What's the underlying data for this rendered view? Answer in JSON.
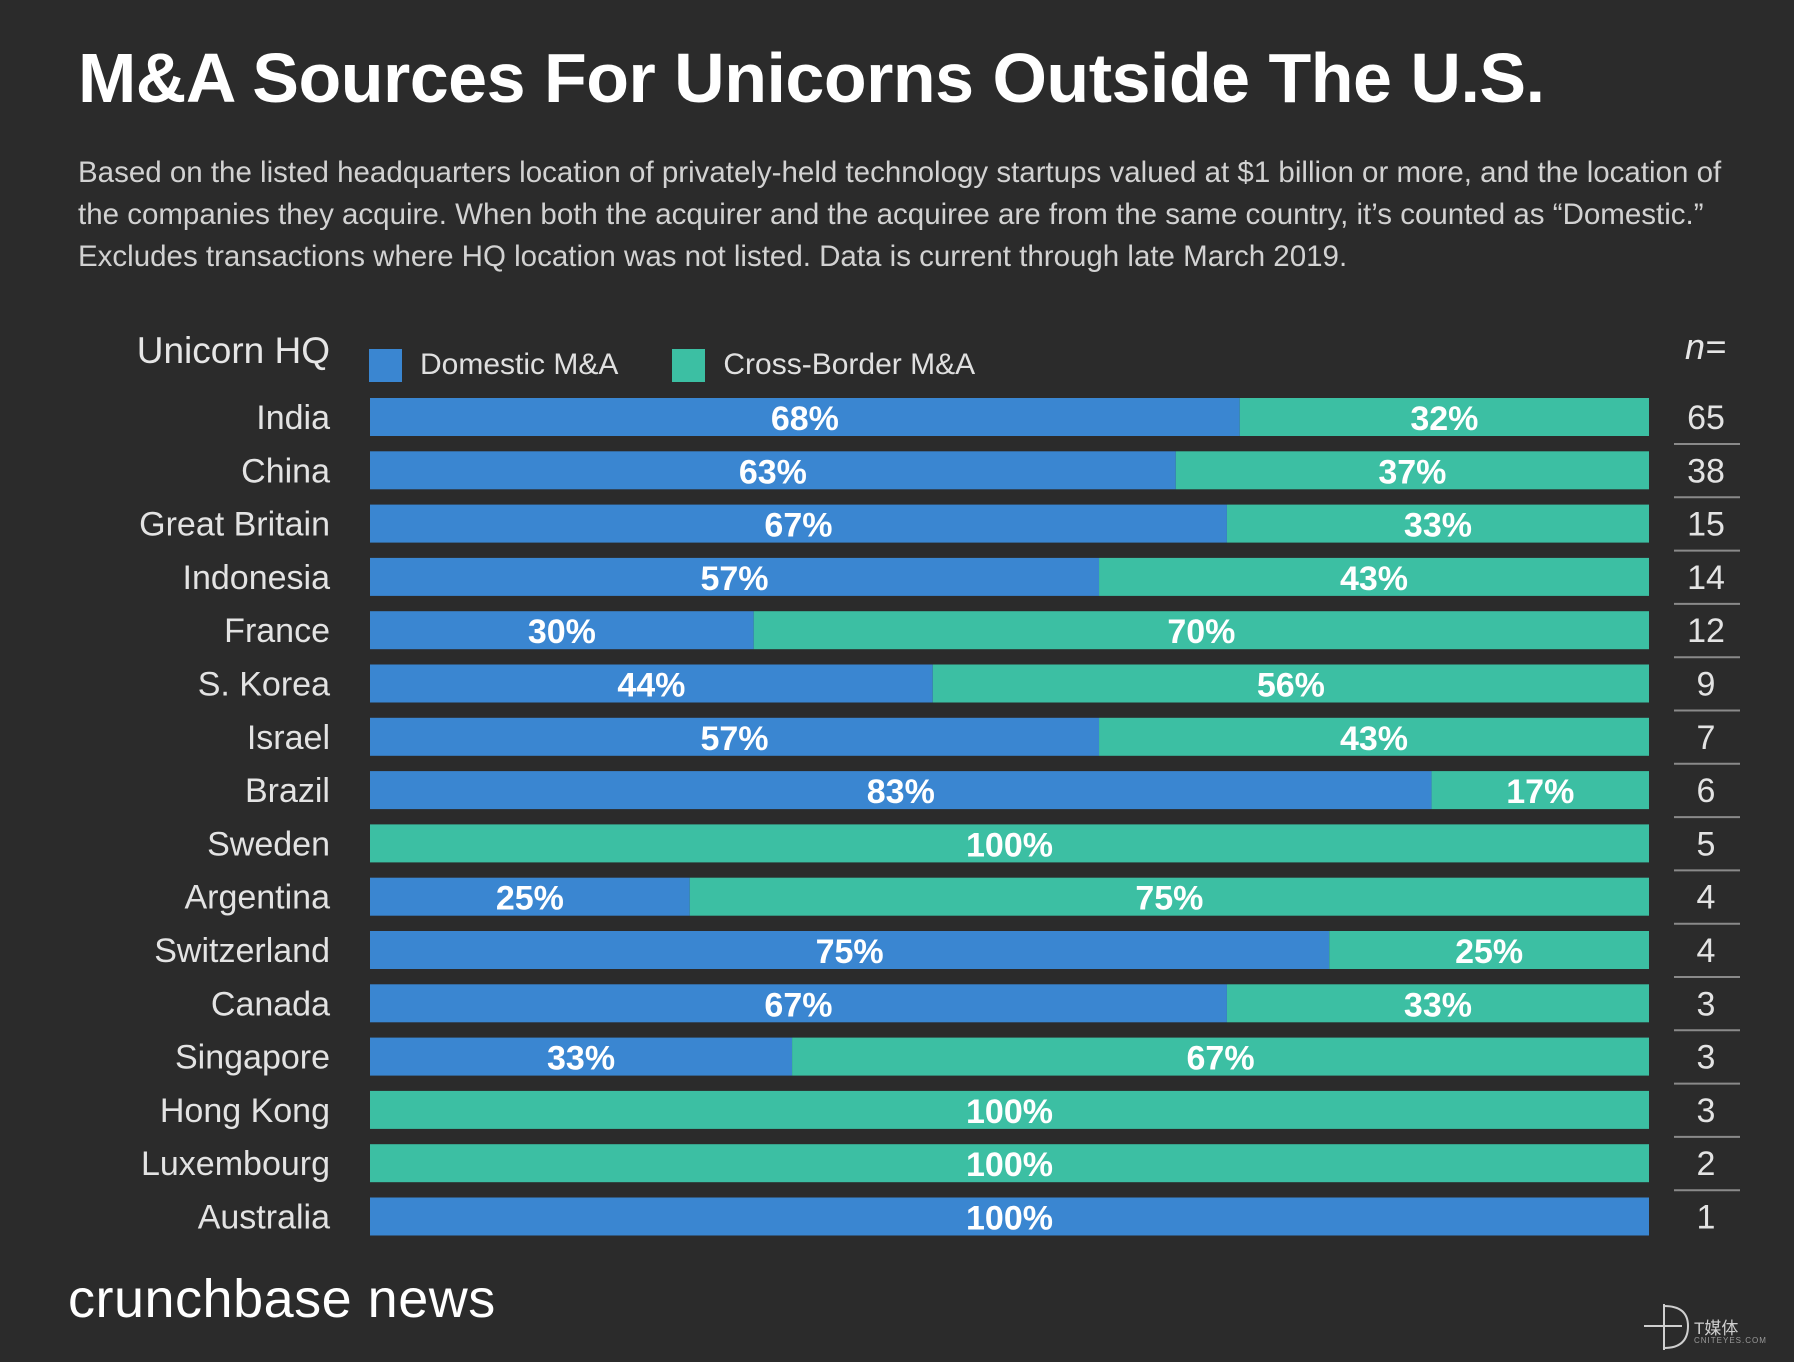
{
  "title": "M&A Sources For Unicorns Outside The U.S.",
  "subtitle": "Based on the listed headquarters location of privately-held technology startups valued at $1 billion or more, and the location of the companies they acquire. When both the acquirer and the acquiree are from the same country, it’s counted as “Domestic.” Excludes transactions where HQ location was not listed. Data is current through late March 2019.",
  "legend": {
    "row_header": "Unicorn HQ",
    "domestic": "Domestic M&A",
    "cross_border": "Cross-Border M&A",
    "n_header": "n="
  },
  "colors": {
    "background": "#2b2b2b",
    "domestic": "#3a86d1",
    "cross_border": "#3cbfa3",
    "divider": "#8a8a8a"
  },
  "footer": {
    "brand": "crunchbase news",
    "watermark": "T媒体",
    "watermark_sub": "CNITEYES.COM"
  },
  "chart_data": {
    "type": "bar",
    "orientation": "horizontal",
    "stacked": true,
    "normalized_percent": true,
    "categories": [
      "India",
      "China",
      "Great Britain",
      "Indonesia",
      "France",
      "S. Korea",
      "Israel",
      "Brazil",
      "Sweden",
      "Argentina",
      "Switzerland",
      "Canada",
      "Singapore",
      "Hong Kong",
      "Luxembourg",
      "Australia"
    ],
    "series": [
      {
        "name": "Domestic M&A",
        "values": [
          68,
          63,
          67,
          57,
          30,
          44,
          57,
          83,
          0,
          25,
          75,
          67,
          33,
          0,
          0,
          100
        ]
      },
      {
        "name": "Cross-Border M&A",
        "values": [
          32,
          37,
          33,
          43,
          70,
          56,
          43,
          17,
          100,
          75,
          25,
          33,
          67,
          100,
          100,
          0
        ]
      }
    ],
    "n": [
      65,
      38,
      15,
      14,
      12,
      9,
      7,
      6,
      5,
      4,
      4,
      3,
      3,
      3,
      2,
      1
    ],
    "value_suffix": "%",
    "xlim": [
      0,
      100
    ],
    "legend_position": "top",
    "grid": false
  }
}
